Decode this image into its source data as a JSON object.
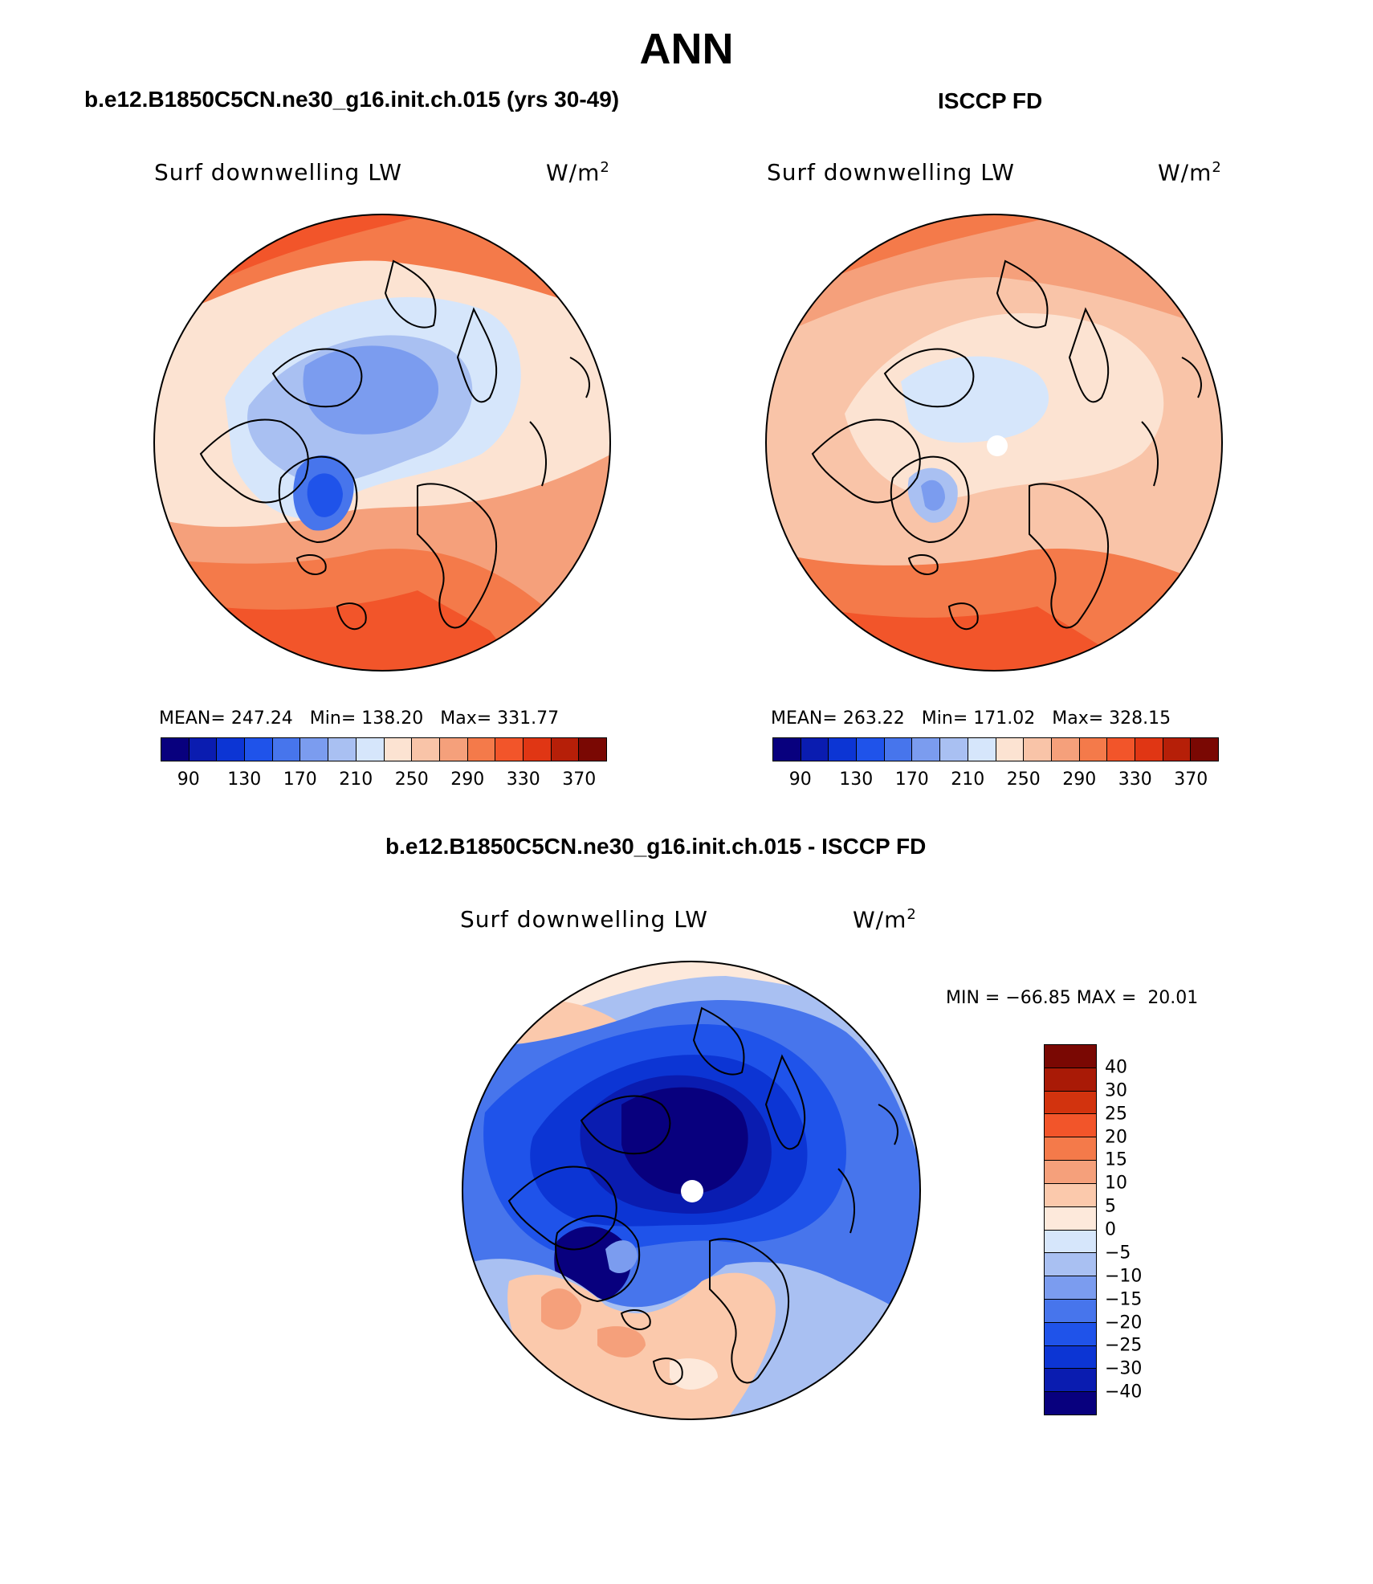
{
  "title": "ANN",
  "panel_left": {
    "case": "b.e12.B1850C5CN.ne30_g16.init.ch.015 (yrs 30-49)",
    "variable": "Surf downwelling LW",
    "units": "W/m",
    "units_sup": "2",
    "stats": {
      "mean_label": "MEAN=",
      "mean": "247.24",
      "min_label": "Min=",
      "min": "138.20",
      "max_label": "Max=",
      "max": "331.77"
    },
    "colorbar_ticks": [
      "90",
      "130",
      "170",
      "210",
      "250",
      "290",
      "330",
      "370"
    ]
  },
  "panel_right": {
    "case": "ISCCP FD",
    "variable": "Surf downwelling LW",
    "units": "W/m",
    "units_sup": "2",
    "stats": {
      "mean_label": "MEAN=",
      "mean": "263.22",
      "min_label": "Min=",
      "min": "171.02",
      "max_label": "Max=",
      "max": "328.15"
    },
    "colorbar_ticks": [
      "90",
      "130",
      "170",
      "210",
      "250",
      "290",
      "330",
      "370"
    ]
  },
  "panel_diff": {
    "case": "b.e12.B1850C5CN.ne30_g16.init.ch.015 - ISCCP FD",
    "variable": "Surf downwelling LW",
    "units": "W/m",
    "units_sup": "2",
    "minmax": {
      "min_label": "MIN =",
      "min": "−66.85",
      "max_label": "MAX =",
      "max": "20.01"
    },
    "colorbar_ticks": [
      "40",
      "30",
      "25",
      "20",
      "15",
      "10",
      "5",
      "0",
      "−5",
      "−10",
      "−15",
      "−20",
      "−25",
      "−30",
      "−40"
    ]
  },
  "colors": {
    "abs_scale": [
      "#08007e",
      "#0a1cb0",
      "#0c35d4",
      "#1f53ea",
      "#4775ec",
      "#7b9cef",
      "#a9c0f2",
      "#d6e6fb",
      "#fce3d2",
      "#f9c4a8",
      "#f5a07b",
      "#f47a4a",
      "#f2552a",
      "#e03614",
      "#b61f08",
      "#7a0803"
    ],
    "diff_scale": [
      "#7a0803",
      "#a91a06",
      "#d2330e",
      "#f2552a",
      "#f47a4a",
      "#f5a07b",
      "#fbc9ac",
      "#fde9db",
      "#d6e6fb",
      "#a9c0f2",
      "#7b9cef",
      "#4775ec",
      "#1f53ea",
      "#0c35d4",
      "#0a1cb0",
      "#08007e"
    ]
  }
}
